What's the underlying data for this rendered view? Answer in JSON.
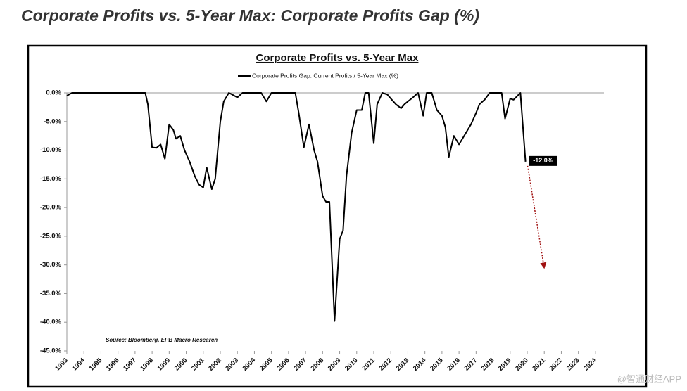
{
  "chart_data": {
    "type": "line",
    "page_title": "Corporate Profits vs. 5-Year Max: Corporate Profits Gap (%)",
    "title": "Corporate Profits vs. 5-Year Max",
    "source": "Source: Bloomberg, EPB Macro Research",
    "watermark": "@智通财经APP",
    "x": [
      1993.0,
      1993.3,
      1997.6,
      1997.75,
      1998.0,
      1998.25,
      1998.5,
      1998.75,
      1999.0,
      1999.25,
      1999.4,
      1999.65,
      1999.9,
      2000.2,
      2000.5,
      2000.75,
      2001.0,
      2001.2,
      2001.5,
      2001.7,
      2002.0,
      2002.2,
      2002.5,
      2002.7,
      2003.0,
      2003.3,
      2004.4,
      2004.7,
      2005.0,
      2006.4,
      2006.6,
      2006.9,
      2007.2,
      2007.5,
      2007.7,
      2008.0,
      2008.2,
      2008.4,
      2008.7,
      2009.0,
      2009.2,
      2009.4,
      2009.7,
      2010.0,
      2010.3,
      2010.5,
      2010.7,
      2011.0,
      2011.2,
      2011.5,
      2011.8,
      2012.0,
      2012.3,
      2012.6,
      2012.8,
      2013.0,
      2013.3,
      2013.6,
      2013.9,
      2014.1,
      2014.4,
      2014.7,
      2015.0,
      2015.2,
      2015.4,
      2015.7,
      2016.0,
      2016.2,
      2016.5,
      2016.7,
      2017.0,
      2017.2,
      2017.5,
      2017.8,
      2018.5,
      2018.7,
      2019.0,
      2019.2,
      2019.5,
      2019.6,
      2019.9
    ],
    "series": [
      {
        "name": "Corporate Profits Gap: Current Profits / 5-Year Max (%)",
        "color": "#000000",
        "values": [
          -0.5,
          0,
          0,
          -2,
          -9.5,
          -9.6,
          -9,
          -11.5,
          -5.5,
          -6.5,
          -8,
          -7.5,
          -10,
          -12,
          -14.5,
          -16,
          -16.5,
          -13,
          -16.8,
          -15,
          -5,
          -1.5,
          0,
          -0.3,
          -0.8,
          0,
          0,
          -1.5,
          0,
          0,
          -3.5,
          -9.5,
          -5.5,
          -10,
          -12,
          -18,
          -19,
          -19,
          -39.8,
          -25.5,
          -24,
          -14.5,
          -7,
          -3,
          -3,
          0,
          0,
          -8.8,
          -2,
          0,
          -0.3,
          -1,
          -2,
          -2.7,
          -2,
          -1.5,
          -0.8,
          0,
          -4,
          0,
          0,
          -3,
          -4,
          -6,
          -11.2,
          -7.5,
          -9,
          -8,
          -6.5,
          -5.5,
          -3.5,
          -2,
          -1.2,
          0,
          0,
          -4.5,
          -1,
          -1.2,
          -0.3,
          0,
          -12
        ]
      }
    ],
    "annotations": [
      {
        "text": "-12.0%",
        "x": 2019.9,
        "y": -12
      }
    ],
    "xlim": [
      1993,
      2024.5
    ],
    "xticks": [
      1993,
      1994,
      1995,
      1996,
      1997,
      1998,
      1999,
      2000,
      2001,
      2002,
      2003,
      2004,
      2005,
      2006,
      2007,
      2008,
      2009,
      2010,
      2011,
      2012,
      2013,
      2014,
      2015,
      2016,
      2017,
      2018,
      2019,
      2020,
      2021,
      2022,
      2023,
      2024
    ],
    "ylim": [
      -45,
      0
    ],
    "yticks": [
      {
        "value": 0,
        "label": "0.0%"
      },
      {
        "value": -5,
        "label": "-5.0%"
      },
      {
        "value": -10,
        "label": "-10.0%"
      },
      {
        "value": -15,
        "label": "-15.0%"
      },
      {
        "value": -20,
        "label": "-20.0%"
      },
      {
        "value": -25,
        "label": "-25.0%"
      },
      {
        "value": -30,
        "label": "-30.0%"
      },
      {
        "value": -35,
        "label": "-35.0%"
      },
      {
        "value": -40,
        "label": "-40.0%"
      },
      {
        "value": -45,
        "label": "-45.0%"
      }
    ]
  }
}
